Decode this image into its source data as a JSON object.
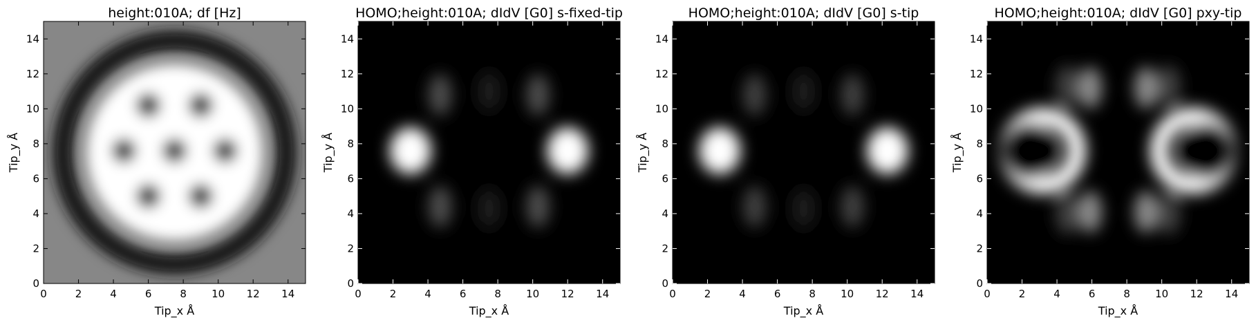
{
  "chart_data": [
    {
      "type": "heatmap",
      "title": "height:010A; df [Hz]",
      "xlabel": "Tip_x Å",
      "ylabel": "Tip_y Å",
      "xlim": [
        0,
        15
      ],
      "ylim": [
        0,
        15
      ],
      "xticks": [
        "0",
        "2",
        "4",
        "6",
        "8",
        "10",
        "12",
        "14"
      ],
      "yticks": [
        "0",
        "2",
        "4",
        "6",
        "8",
        "10",
        "12",
        "14"
      ],
      "colormap": "gray",
      "background_level": 0.53,
      "features": [
        {
          "kind": "bright-disc",
          "x": 7.5,
          "y": 7.5,
          "r": 5.0,
          "level": 1.0
        },
        {
          "kind": "dark-ring",
          "x": 7.5,
          "y": 7.5,
          "r": 6.4,
          "level": 0.08
        },
        {
          "kind": "dark-spot",
          "x": 6.0,
          "y": 10.2,
          "level": 0.35
        },
        {
          "kind": "dark-spot",
          "x": 9.0,
          "y": 10.2,
          "level": 0.35
        },
        {
          "kind": "dark-spot",
          "x": 4.6,
          "y": 7.6,
          "level": 0.35
        },
        {
          "kind": "dark-spot",
          "x": 7.5,
          "y": 7.6,
          "level": 0.35
        },
        {
          "kind": "dark-spot",
          "x": 10.4,
          "y": 7.6,
          "level": 0.35
        },
        {
          "kind": "dark-spot",
          "x": 6.0,
          "y": 5.0,
          "level": 0.35
        },
        {
          "kind": "dark-spot",
          "x": 9.0,
          "y": 5.0,
          "level": 0.35
        }
      ]
    },
    {
      "type": "heatmap",
      "title": "HOMO;height:010A; dIdV [G0] s-fixed-tip",
      "xlabel": "Tip_x Å",
      "ylabel": "Tip_y Å",
      "xlim": [
        0,
        15
      ],
      "ylim": [
        0,
        15
      ],
      "xticks": [
        "0",
        "2",
        "4",
        "6",
        "8",
        "10",
        "12",
        "14"
      ],
      "yticks": [
        "0",
        "2",
        "4",
        "6",
        "8",
        "10",
        "12",
        "14"
      ],
      "colormap": "gray",
      "background_level": 0.0,
      "features": [
        {
          "kind": "bright-spot",
          "x": 3.0,
          "y": 7.6,
          "level": 1.0
        },
        {
          "kind": "bright-spot",
          "x": 12.0,
          "y": 7.6,
          "level": 1.0
        },
        {
          "kind": "lobe",
          "x": 4.7,
          "y": 10.8,
          "level": 0.3
        },
        {
          "kind": "lobe",
          "x": 10.3,
          "y": 10.8,
          "level": 0.3
        },
        {
          "kind": "lobe",
          "x": 4.7,
          "y": 4.4,
          "level": 0.3
        },
        {
          "kind": "lobe",
          "x": 10.3,
          "y": 4.4,
          "level": 0.3
        },
        {
          "kind": "lobe",
          "x": 7.5,
          "y": 11.0,
          "level": 0.12
        },
        {
          "kind": "lobe",
          "x": 7.5,
          "y": 4.3,
          "level": 0.12
        }
      ]
    },
    {
      "type": "heatmap",
      "title": "HOMO;height:010A; dIdV [G0] s-tip",
      "xlabel": "Tip_x Å",
      "ylabel": "Tip_y Å",
      "xlim": [
        0,
        15
      ],
      "ylim": [
        0,
        15
      ],
      "xticks": [
        "0",
        "2",
        "4",
        "6",
        "8",
        "10",
        "12",
        "14"
      ],
      "yticks": [
        "0",
        "2",
        "4",
        "6",
        "8",
        "10",
        "12",
        "14"
      ],
      "colormap": "gray",
      "background_level": 0.0,
      "features": [
        {
          "kind": "bright-spot",
          "x": 2.7,
          "y": 7.6,
          "level": 1.0
        },
        {
          "kind": "bright-spot",
          "x": 12.3,
          "y": 7.6,
          "level": 1.0
        },
        {
          "kind": "lobe",
          "x": 4.7,
          "y": 10.8,
          "level": 0.25
        },
        {
          "kind": "lobe",
          "x": 10.3,
          "y": 10.8,
          "level": 0.25
        },
        {
          "kind": "lobe",
          "x": 4.7,
          "y": 4.4,
          "level": 0.25
        },
        {
          "kind": "lobe",
          "x": 10.3,
          "y": 4.4,
          "level": 0.25
        },
        {
          "kind": "lobe",
          "x": 7.5,
          "y": 11.0,
          "level": 0.1
        },
        {
          "kind": "lobe",
          "x": 7.5,
          "y": 4.3,
          "level": 0.1
        }
      ]
    },
    {
      "type": "heatmap",
      "title": "HOMO;height:010A; dIdV [G0] pxy-tip",
      "xlabel": "Tip_x Å",
      "ylabel": "Tip_y Å",
      "xlim": [
        0,
        15
      ],
      "ylim": [
        0,
        15
      ],
      "xticks": [
        "0",
        "2",
        "4",
        "6",
        "8",
        "10",
        "12",
        "14"
      ],
      "yticks": [
        "0",
        "2",
        "4",
        "6",
        "8",
        "10",
        "12",
        "14"
      ],
      "colormap": "gray",
      "background_level": 0.0,
      "features": [
        {
          "kind": "crescent",
          "x": 3.2,
          "y": 7.6,
          "r": 1.4,
          "level": 1.0
        },
        {
          "kind": "crescent",
          "x": 11.8,
          "y": 7.6,
          "r": 1.4,
          "level": 1.0
        },
        {
          "kind": "lobe",
          "x": 5.9,
          "y": 11.2,
          "level": 0.55
        },
        {
          "kind": "lobe",
          "x": 9.1,
          "y": 11.2,
          "level": 0.55
        },
        {
          "kind": "lobe",
          "x": 5.9,
          "y": 4.1,
          "level": 0.55
        },
        {
          "kind": "lobe",
          "x": 9.1,
          "y": 4.1,
          "level": 0.55
        },
        {
          "kind": "lobe",
          "x": 4.6,
          "y": 11.3,
          "level": 0.25
        },
        {
          "kind": "lobe",
          "x": 10.4,
          "y": 11.3,
          "level": 0.25
        },
        {
          "kind": "lobe",
          "x": 4.6,
          "y": 4.0,
          "level": 0.25
        },
        {
          "kind": "lobe",
          "x": 10.4,
          "y": 4.0,
          "level": 0.25
        }
      ]
    }
  ]
}
